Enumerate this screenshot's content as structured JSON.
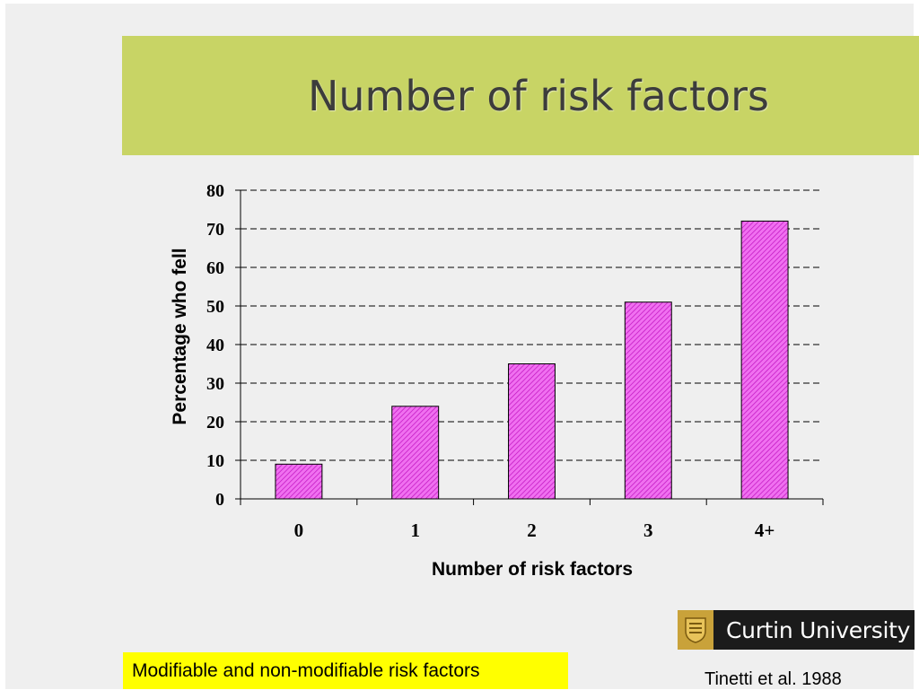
{
  "slide": {
    "title": "Number of risk factors",
    "note": "Modifiable and non-modifiable risk factors",
    "citation": "Tinetti et al. 1988",
    "logo_text": "Curtin University"
  },
  "colors": {
    "title_band": "#c8d465",
    "bar_fill": "#ee44ee",
    "note_background": "#ffff00"
  },
  "icons": {
    "logo": "curtin-crest-icon"
  },
  "chart_data": {
    "type": "bar",
    "title": "",
    "xlabel": "Number of risk factors",
    "ylabel": "Percentage who fell",
    "categories": [
      "0",
      "1",
      "2",
      "3",
      "4+"
    ],
    "values": [
      9,
      24,
      35,
      51,
      72
    ],
    "ylim": [
      0,
      80
    ],
    "yticks": [
      0,
      10,
      20,
      30,
      40,
      50,
      60,
      70,
      80
    ],
    "grid": "dashed horizontal",
    "legend": "none"
  }
}
